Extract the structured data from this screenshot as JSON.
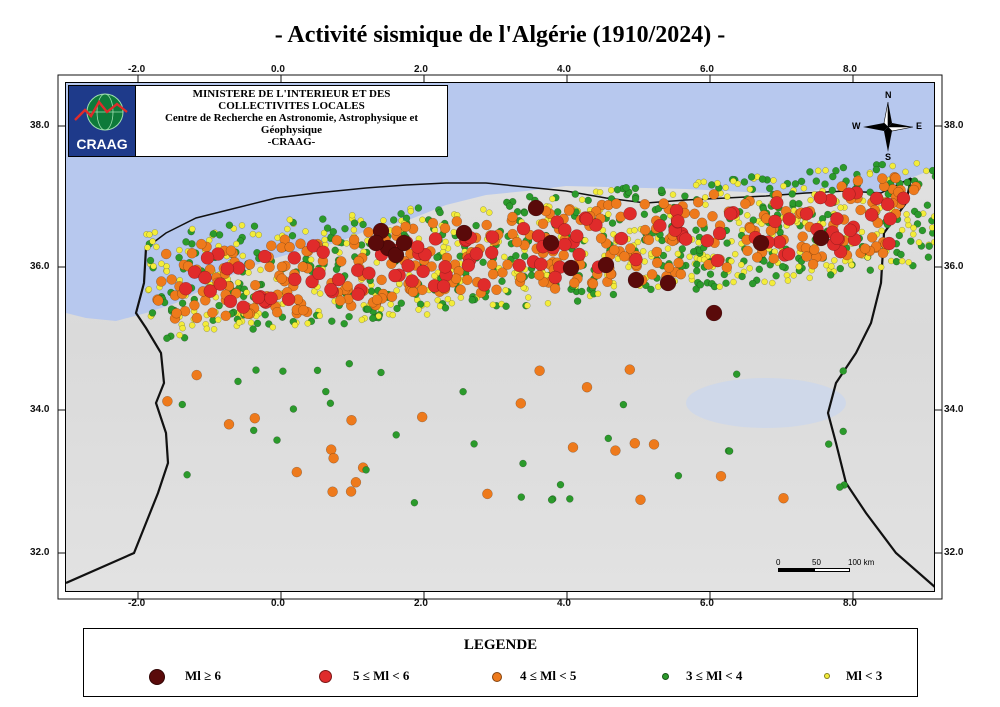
{
  "title": "- Activité sismique de l'Algérie (1910/2024) -",
  "organization": {
    "line1": "MINISTERE DE L'INTERIEUR ET DES",
    "line2": "COLLECTIVITES LOCALES",
    "line3": "Centre de Recherche en Astronomie, Astrophysique et",
    "line4": "Géophysique",
    "line5": "-CRAAG-",
    "logo_text": "CRAAG"
  },
  "compass": {
    "n": "N",
    "s": "S",
    "e": "E",
    "w": "W"
  },
  "scale": {
    "zero": "0",
    "mid": "50",
    "end": "100 km"
  },
  "axes": {
    "lon_labels": [
      "-2.0",
      "0.0",
      "2.0",
      "4.0",
      "6.0",
      "8.0"
    ],
    "lat_labels": [
      "38.0",
      "36.0",
      "34.0",
      "32.0"
    ]
  },
  "legend": {
    "title": "LEGENDE",
    "items": [
      {
        "label": "Ml ≥ 6",
        "color": "#5a0a0a",
        "size": 16
      },
      {
        "label": "5 ≤ Ml < 6",
        "color": "#e02b2b",
        "size": 13
      },
      {
        "label": "4 ≤ Ml < 5",
        "color": "#ee7a1c",
        "size": 10
      },
      {
        "label": "3 ≤ Ml < 4",
        "color": "#2b9a2b",
        "size": 7
      },
      {
        "label": "Ml < 3",
        "color": "#f3ec3a",
        "size": 6
      }
    ]
  },
  "colors": {
    "sea": "#b7c8ee",
    "land": "#dcdcdc",
    "border": "#111111"
  }
}
